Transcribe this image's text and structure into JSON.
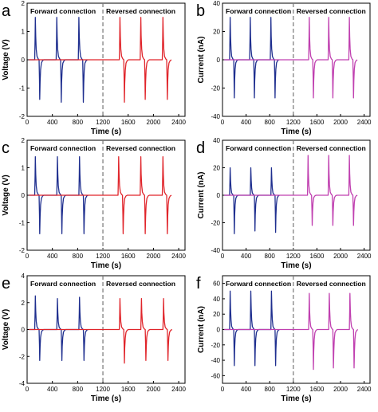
{
  "panels": [
    {
      "letter": "a",
      "ylabel": "Voltage (V)",
      "xlabel": "Time (s)",
      "forward_label": "Forward connection",
      "reversed_label": "Reversed connection"
    },
    {
      "letter": "b",
      "ylabel": "Current (nA)",
      "xlabel": "Time (s)",
      "forward_label": "Forward connection",
      "reversed_label": "Reversed connection"
    },
    {
      "letter": "c",
      "ylabel": "Voltage (V)",
      "xlabel": "Time (s)",
      "forward_label": "Forward connection",
      "reversed_label": "Reversed connection"
    },
    {
      "letter": "d",
      "ylabel": "Current (nA)",
      "xlabel": "Time (s)",
      "forward_label": "Forward connection",
      "reversed_label": "Reversed connection"
    },
    {
      "letter": "e",
      "ylabel": "Voltage (V)",
      "xlabel": "Time (s)",
      "forward_label": "Forward connection",
      "reversed_label": "Reversed connection"
    },
    {
      "letter": "f",
      "ylabel": "Current (nA)",
      "xlabel": "Time (s)",
      "forward_label": "Forward connection",
      "reversed_label": "Reversed connection"
    }
  ],
  "colors": {
    "forward": "#1f2f8f",
    "reversed_voltage": "#e0252b",
    "reversed_current": "#c040b0",
    "divider": "#777777",
    "axis": "#000000"
  },
  "chart_data": [
    {
      "type": "line",
      "panel": "a",
      "xlabel": "Time (s)",
      "ylabel": "Voltage (V)",
      "xlim": [
        0,
        2500
      ],
      "ylim": [
        -2,
        2
      ],
      "xticks": [
        0,
        400,
        800,
        1200,
        1600,
        2000,
        2400
      ],
      "yticks": [
        -2,
        -1,
        0,
        1,
        2
      ],
      "divider_x": 1200,
      "grid": false,
      "series": [
        {
          "name": "Forward connection",
          "color": "#1f2f8f",
          "pulses": [
            {
              "x": 130,
              "peak": 1.5,
              "valley": -1.4
            },
            {
              "x": 470,
              "peak": 1.5,
              "valley": -1.5
            },
            {
              "x": 820,
              "peak": 1.5,
              "valley": -1.5
            }
          ]
        },
        {
          "name": "Reversed connection",
          "color": "#e0252b",
          "pulses": [
            {
              "x": 1470,
              "peak": 1.5,
              "valley": -1.5
            },
            {
              "x": 1800,
              "peak": 1.5,
              "valley": -1.4
            },
            {
              "x": 2150,
              "peak": 1.5,
              "valley": -1.4
            }
          ]
        }
      ]
    },
    {
      "type": "line",
      "panel": "b",
      "xlabel": "Time (s)",
      "ylabel": "Current (nA)",
      "xlim": [
        0,
        2500
      ],
      "ylim": [
        -40,
        40
      ],
      "xticks": [
        0,
        400,
        800,
        1200,
        1600,
        2000,
        2400
      ],
      "yticks": [
        -40,
        -20,
        0,
        20,
        40
      ],
      "divider_x": 1200,
      "grid": false,
      "series": [
        {
          "name": "Forward connection",
          "color": "#1f2f8f",
          "pulses": [
            {
              "x": 130,
              "peak": 30,
              "valley": -27
            },
            {
              "x": 470,
              "peak": 30,
              "valley": -27
            },
            {
              "x": 820,
              "peak": 30,
              "valley": -27
            }
          ]
        },
        {
          "name": "Reversed connection",
          "color": "#c040b0",
          "pulses": [
            {
              "x": 1470,
              "peak": 30,
              "valley": -27
            },
            {
              "x": 1800,
              "peak": 30,
              "valley": -27
            },
            {
              "x": 2150,
              "peak": 30,
              "valley": -27
            }
          ]
        }
      ]
    },
    {
      "type": "line",
      "panel": "c",
      "xlabel": "Time (s)",
      "ylabel": "Voltage (V)",
      "xlim": [
        0,
        2500
      ],
      "ylim": [
        -2,
        2
      ],
      "xticks": [
        0,
        400,
        800,
        1200,
        1600,
        2000,
        2400
      ],
      "yticks": [
        -2,
        -1,
        0,
        1,
        2
      ],
      "divider_x": 1200,
      "grid": false,
      "series": [
        {
          "name": "Forward connection",
          "color": "#1f2f8f",
          "pulses": [
            {
              "x": 130,
              "peak": 1.4,
              "valley": -1.4
            },
            {
              "x": 480,
              "peak": 1.4,
              "valley": -1.4
            },
            {
              "x": 830,
              "peak": 1.4,
              "valley": -1.4
            }
          ]
        },
        {
          "name": "Reversed connection",
          "color": "#e0252b",
          "pulses": [
            {
              "x": 1450,
              "peak": 1.4,
              "valley": -1.4
            },
            {
              "x": 1800,
              "peak": 1.4,
              "valley": -1.4
            },
            {
              "x": 2150,
              "peak": 1.4,
              "valley": -1.4
            }
          ]
        }
      ]
    },
    {
      "type": "line",
      "panel": "d",
      "xlabel": "Time (s)",
      "ylabel": "Current (nA)",
      "xlim": [
        0,
        2500
      ],
      "ylim": [
        -40,
        40
      ],
      "xticks": [
        0,
        400,
        800,
        1200,
        1600,
        2000,
        2400
      ],
      "yticks": [
        -40,
        -20,
        0,
        20,
        40
      ],
      "divider_x": 1200,
      "grid": false,
      "series": [
        {
          "name": "Forward connection",
          "color": "#1f2f8f",
          "pulses": [
            {
              "x": 130,
              "peak": 20,
              "valley": -28
            },
            {
              "x": 480,
              "peak": 20,
              "valley": -26
            },
            {
              "x": 830,
              "peak": 20,
              "valley": -27
            }
          ]
        },
        {
          "name": "Reversed connection",
          "color": "#c040b0",
          "pulses": [
            {
              "x": 1450,
              "peak": 29,
              "valley": -22
            },
            {
              "x": 1800,
              "peak": 29,
              "valley": -22
            },
            {
              "x": 2150,
              "peak": 29,
              "valley": -22
            }
          ]
        }
      ]
    },
    {
      "type": "line",
      "panel": "e",
      "xlabel": "Time (s)",
      "ylabel": "Voltage (V)",
      "xlim": [
        0,
        2500
      ],
      "ylim": [
        -4,
        4
      ],
      "xticks": [
        0,
        400,
        800,
        1200,
        1600,
        2000,
        2400
      ],
      "yticks": [
        -4,
        -2,
        0,
        2,
        4
      ],
      "divider_x": 1200,
      "grid": false,
      "series": [
        {
          "name": "Forward connection",
          "color": "#1f2f8f",
          "pulses": [
            {
              "x": 130,
              "peak": 2.5,
              "valley": -2.3
            },
            {
              "x": 480,
              "peak": 2.3,
              "valley": -2.3
            },
            {
              "x": 830,
              "peak": 2.4,
              "valley": -2.3
            }
          ]
        },
        {
          "name": "Reversed connection",
          "color": "#e0252b",
          "pulses": [
            {
              "x": 1470,
              "peak": 2.3,
              "valley": -2.5
            },
            {
              "x": 1810,
              "peak": 2.3,
              "valley": -2.3
            },
            {
              "x": 2160,
              "peak": 2.3,
              "valley": -2.3
            }
          ]
        }
      ]
    },
    {
      "type": "line",
      "panel": "f",
      "xlabel": "Time (s)",
      "ylabel": "Current (nA)",
      "xlim": [
        0,
        2500
      ],
      "ylim": [
        -70,
        70
      ],
      "xticks": [
        0,
        400,
        800,
        1200,
        1600,
        2000,
        2400
      ],
      "yticks": [
        -60,
        -40,
        -20,
        0,
        20,
        40,
        60
      ],
      "divider_x": 1200,
      "grid": false,
      "series": [
        {
          "name": "Forward connection",
          "color": "#1f2f8f",
          "pulses": [
            {
              "x": 130,
              "peak": 50,
              "valley": -47
            },
            {
              "x": 480,
              "peak": 50,
              "valley": -47
            },
            {
              "x": 830,
              "peak": 50,
              "valley": -47
            }
          ]
        },
        {
          "name": "Reversed connection",
          "color": "#c040b0",
          "pulses": [
            {
              "x": 1470,
              "peak": 47,
              "valley": -52
            },
            {
              "x": 1810,
              "peak": 47,
              "valley": -50
            },
            {
              "x": 2160,
              "peak": 47,
              "valley": -50
            }
          ]
        }
      ]
    }
  ]
}
